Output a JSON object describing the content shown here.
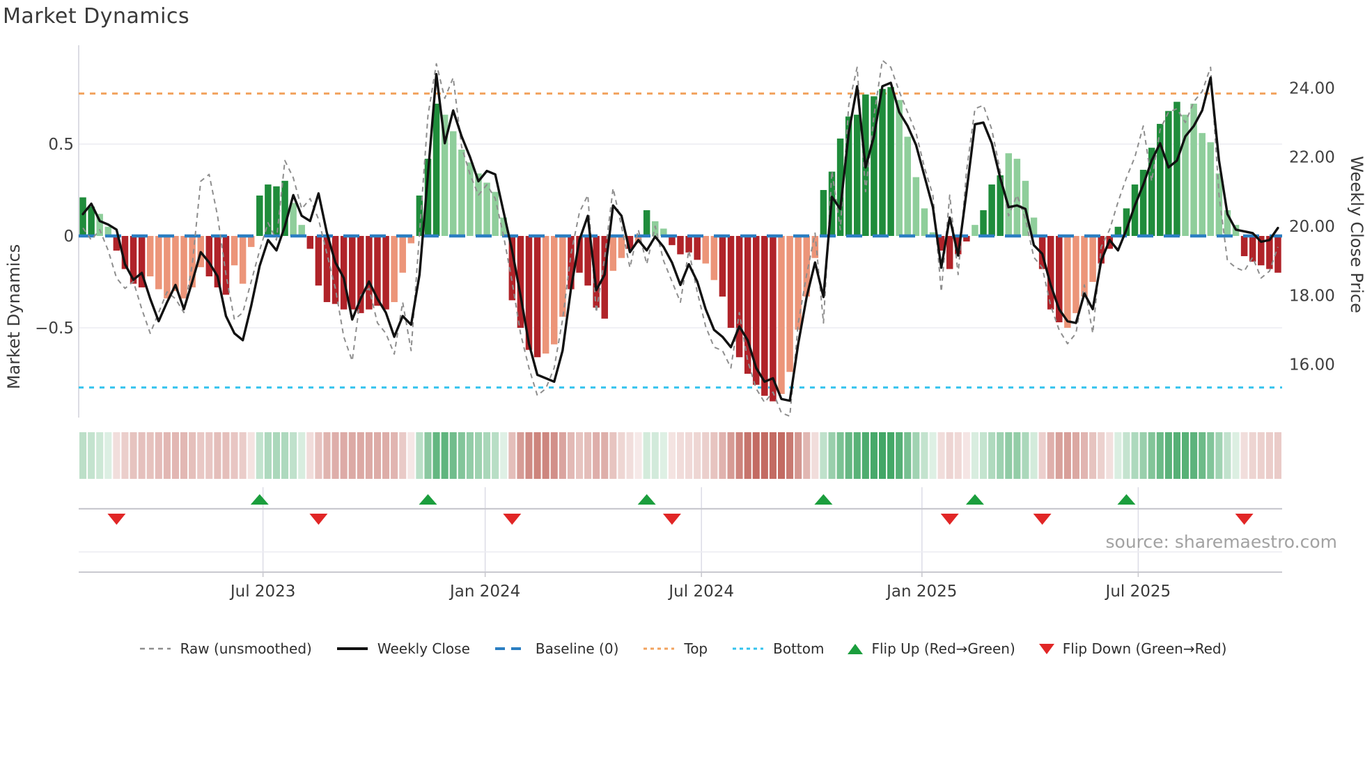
{
  "title": "Market Dynamics",
  "source": "source: sharemaestro.com",
  "legend": {
    "raw": "Raw (unsmoothed)",
    "close": "Weekly Close",
    "baseline": "Baseline (0)",
    "top": "Top",
    "bottom": "Bottom",
    "flip_up": "Flip Up (Red→Green)",
    "flip_down": "Flip Down (Green→Red)"
  },
  "colors": {
    "bar_dark_green": "#1f8c3b",
    "bar_light_green": "#8fce9b",
    "bar_dark_red": "#b02329",
    "bar_salmon": "#ec9579",
    "close_line": "#111111",
    "raw_line": "#8e8e8e",
    "baseline": "#2b7ec2",
    "top_line": "#f2a35e",
    "bottom_line": "#33c3ee",
    "flip_up": "#1b9e3d",
    "flip_down": "#e12626",
    "grid": "#ececf2",
    "spine": "#d4d4dc",
    "axis_line": "#c9c9cf",
    "text": "#3a3a3a",
    "tick_text": "#404040",
    "heat_green_max": "#3aa35f",
    "heat_red_max": "#c0655c"
  },
  "chart_data": {
    "type": "combo",
    "subtype": "oscillator-bars + dual-axis lines + heatmap strip + flip markers",
    "title": "Market Dynamics",
    "left_axis": {
      "label": "Market Dynamics",
      "ticks": [
        {
          "v": 0.5,
          "label": "0.5"
        },
        {
          "v": 0.0,
          "label": "0"
        },
        {
          "v": -0.5,
          "label": "−0.5"
        }
      ],
      "ylim": [
        -0.99,
        1.04
      ],
      "baseline": 0.0,
      "top_band": 0.775,
      "bottom_band": -0.825
    },
    "right_axis": {
      "label": "Weekly Close Price",
      "ticks": [
        {
          "v": 24,
          "label": "24.00"
        },
        {
          "v": 22,
          "label": "22.00"
        },
        {
          "v": 20,
          "label": "20.00"
        },
        {
          "v": 18,
          "label": "18.00"
        },
        {
          "v": 16,
          "label": "16.00"
        }
      ],
      "ylim": [
        14.46,
        25.24
      ]
    },
    "x_axis": {
      "ticks": [
        {
          "week": 21.4,
          "label": "Jul 2023"
        },
        {
          "week": 47.8,
          "label": "Jan 2024"
        },
        {
          "week": 73.5,
          "label": "Jul 2024"
        },
        {
          "week": 99.7,
          "label": "Jan 2025"
        },
        {
          "week": 125.4,
          "label": "Jul 2025"
        }
      ]
    },
    "oscillator": [
      [
        0.21,
        "G"
      ],
      [
        0.16,
        "G"
      ],
      [
        0.12,
        "g"
      ],
      [
        0.05,
        "g"
      ],
      [
        -0.08,
        "R"
      ],
      [
        -0.18,
        "R"
      ],
      [
        -0.26,
        "R"
      ],
      [
        -0.28,
        "R"
      ],
      [
        -0.22,
        "r"
      ],
      [
        -0.29,
        "r"
      ],
      [
        -0.34,
        "r"
      ],
      [
        -0.3,
        "r"
      ],
      [
        -0.34,
        "r"
      ],
      [
        -0.28,
        "r"
      ],
      [
        -0.17,
        "r"
      ],
      [
        -0.22,
        "R"
      ],
      [
        -0.28,
        "R"
      ],
      [
        -0.32,
        "R"
      ],
      [
        -0.16,
        "r"
      ],
      [
        -0.26,
        "r"
      ],
      [
        -0.06,
        "r"
      ],
      [
        0.22,
        "G"
      ],
      [
        0.28,
        "G"
      ],
      [
        0.27,
        "G"
      ],
      [
        0.3,
        "G"
      ],
      [
        0.18,
        "g"
      ],
      [
        0.06,
        "g"
      ],
      [
        -0.07,
        "R"
      ],
      [
        -0.27,
        "R"
      ],
      [
        -0.36,
        "R"
      ],
      [
        -0.37,
        "R"
      ],
      [
        -0.4,
        "R"
      ],
      [
        -0.4,
        "R"
      ],
      [
        -0.42,
        "R"
      ],
      [
        -0.4,
        "R"
      ],
      [
        -0.38,
        "R"
      ],
      [
        -0.4,
        "R"
      ],
      [
        -0.36,
        "r"
      ],
      [
        -0.2,
        "r"
      ],
      [
        -0.04,
        "r"
      ],
      [
        0.22,
        "G"
      ],
      [
        0.42,
        "G"
      ],
      [
        0.72,
        "G"
      ],
      [
        0.66,
        "g"
      ],
      [
        0.57,
        "g"
      ],
      [
        0.47,
        "g"
      ],
      [
        0.4,
        "g"
      ],
      [
        0.34,
        "g"
      ],
      [
        0.29,
        "g"
      ],
      [
        0.24,
        "g"
      ],
      [
        0.1,
        "g"
      ],
      [
        -0.35,
        "R"
      ],
      [
        -0.5,
        "R"
      ],
      [
        -0.62,
        "R"
      ],
      [
        -0.66,
        "R"
      ],
      [
        -0.64,
        "r"
      ],
      [
        -0.59,
        "r"
      ],
      [
        -0.44,
        "r"
      ],
      [
        -0.29,
        "R"
      ],
      [
        -0.2,
        "R"
      ],
      [
        -0.27,
        "R"
      ],
      [
        -0.39,
        "R"
      ],
      [
        -0.45,
        "R"
      ],
      [
        -0.19,
        "r"
      ],
      [
        -0.12,
        "r"
      ],
      [
        -0.07,
        "R"
      ],
      [
        -0.04,
        "r"
      ],
      [
        0.14,
        "G"
      ],
      [
        0.08,
        "g"
      ],
      [
        0.04,
        "g"
      ],
      [
        -0.05,
        "R"
      ],
      [
        -0.1,
        "R"
      ],
      [
        -0.09,
        "R"
      ],
      [
        -0.13,
        "R"
      ],
      [
        -0.15,
        "r"
      ],
      [
        -0.24,
        "r"
      ],
      [
        -0.33,
        "R"
      ],
      [
        -0.5,
        "R"
      ],
      [
        -0.66,
        "R"
      ],
      [
        -0.75,
        "R"
      ],
      [
        -0.81,
        "R"
      ],
      [
        -0.87,
        "R"
      ],
      [
        -0.9,
        "R"
      ],
      [
        -0.86,
        "r"
      ],
      [
        -0.74,
        "r"
      ],
      [
        -0.51,
        "r"
      ],
      [
        -0.33,
        "r"
      ],
      [
        -0.12,
        "r"
      ],
      [
        0.25,
        "G"
      ],
      [
        0.35,
        "G"
      ],
      [
        0.53,
        "G"
      ],
      [
        0.65,
        "G"
      ],
      [
        0.66,
        "G"
      ],
      [
        0.77,
        "G"
      ],
      [
        0.76,
        "G"
      ],
      [
        0.8,
        "G"
      ],
      [
        0.81,
        "G"
      ],
      [
        0.74,
        "g"
      ],
      [
        0.54,
        "g"
      ],
      [
        0.32,
        "g"
      ],
      [
        0.15,
        "g"
      ],
      [
        0.02,
        "g"
      ],
      [
        -0.08,
        "R"
      ],
      [
        -0.18,
        "R"
      ],
      [
        -0.1,
        "R"
      ],
      [
        -0.03,
        "R"
      ],
      [
        0.06,
        "g"
      ],
      [
        0.14,
        "G"
      ],
      [
        0.28,
        "G"
      ],
      [
        0.33,
        "G"
      ],
      [
        0.45,
        "g"
      ],
      [
        0.42,
        "g"
      ],
      [
        0.3,
        "g"
      ],
      [
        0.1,
        "g"
      ],
      [
        -0.18,
        "R"
      ],
      [
        -0.4,
        "R"
      ],
      [
        -0.47,
        "R"
      ],
      [
        -0.5,
        "r"
      ],
      [
        -0.42,
        "r"
      ],
      [
        -0.33,
        "r"
      ],
      [
        -0.25,
        "r"
      ],
      [
        -0.15,
        "R"
      ],
      [
        -0.07,
        "R"
      ],
      [
        0.05,
        "G"
      ],
      [
        0.15,
        "G"
      ],
      [
        0.28,
        "G"
      ],
      [
        0.36,
        "G"
      ],
      [
        0.48,
        "G"
      ],
      [
        0.61,
        "G"
      ],
      [
        0.68,
        "G"
      ],
      [
        0.73,
        "G"
      ],
      [
        0.66,
        "g"
      ],
      [
        0.72,
        "g"
      ],
      [
        0.56,
        "g"
      ],
      [
        0.51,
        "g"
      ],
      [
        0.34,
        "g"
      ],
      [
        0.14,
        "g"
      ],
      [
        0.06,
        "g"
      ],
      [
        -0.11,
        "R"
      ],
      [
        -0.14,
        "R"
      ],
      [
        -0.16,
        "R"
      ],
      [
        -0.18,
        "R"
      ],
      [
        -0.2,
        "R"
      ]
    ],
    "close": [
      20.35,
      20.65,
      20.15,
      20.05,
      19.9,
      18.9,
      18.45,
      18.65,
      17.9,
      17.25,
      17.8,
      18.3,
      17.6,
      18.4,
      19.25,
      18.95,
      18.55,
      17.4,
      16.9,
      16.7,
      17.7,
      18.85,
      19.6,
      19.3,
      20.0,
      20.9,
      20.3,
      20.15,
      20.95,
      19.8,
      18.95,
      18.5,
      17.3,
      17.9,
      18.4,
      17.9,
      17.5,
      16.8,
      17.4,
      17.15,
      18.6,
      21.5,
      24.4,
      22.4,
      23.35,
      22.6,
      22.0,
      21.3,
      21.6,
      21.5,
      20.4,
      19.3,
      18.0,
      16.6,
      15.7,
      15.6,
      15.5,
      16.4,
      18.2,
      19.6,
      20.3,
      18.15,
      18.6,
      20.6,
      20.3,
      19.25,
      19.6,
      19.3,
      19.7,
      19.4,
      18.95,
      18.3,
      18.9,
      18.4,
      17.6,
      17.0,
      16.8,
      16.5,
      17.1,
      16.7,
      15.9,
      15.5,
      15.6,
      15.0,
      14.95,
      16.6,
      17.95,
      18.95,
      17.95,
      20.85,
      20.5,
      22.7,
      24.05,
      21.7,
      22.6,
      24.05,
      24.15,
      23.3,
      22.9,
      22.35,
      21.45,
      20.55,
      18.8,
      20.25,
      19.15,
      21.0,
      22.95,
      23.0,
      22.4,
      21.4,
      20.55,
      20.6,
      20.5,
      19.45,
      19.2,
      18.3,
      17.6,
      17.25,
      17.2,
      18.05,
      17.6,
      19.0,
      19.6,
      19.3,
      19.9,
      20.6,
      21.2,
      21.9,
      22.4,
      21.7,
      21.9,
      22.6,
      22.9,
      23.35,
      24.3,
      21.9,
      20.35,
      19.9,
      19.85,
      19.8,
      19.55,
      19.6,
      19.95
    ],
    "raw": [
      19.95,
      19.6,
      19.9,
      19.3,
      18.5,
      18.2,
      18.4,
      17.6,
      16.9,
      17.5,
      18.1,
      17.9,
      17.5,
      18.9,
      21.3,
      21.5,
      20.3,
      18.6,
      17.3,
      17.5,
      18.4,
      19.3,
      20.1,
      19.6,
      21.9,
      21.4,
      20.5,
      20.8,
      20.2,
      19.2,
      18.2,
      16.8,
      16.1,
      18.0,
      18.2,
      17.2,
      16.9,
      16.3,
      17.8,
      16.4,
      19.8,
      23.2,
      24.7,
      23.7,
      24.3,
      22.3,
      21.5,
      20.9,
      21.2,
      20.8,
      19.7,
      18.4,
      16.9,
      15.9,
      15.1,
      15.3,
      15.9,
      17.3,
      19.2,
      20.4,
      20.9,
      17.5,
      19.1,
      21.1,
      20.0,
      18.8,
      19.9,
      18.9,
      20.0,
      19.0,
      18.4,
      17.8,
      19.3,
      18.1,
      17.1,
      16.5,
      16.4,
      15.9,
      17.5,
      16.1,
      15.3,
      14.9,
      15.2,
      14.6,
      14.5,
      17.2,
      18.6,
      19.8,
      17.2,
      21.6,
      19.9,
      23.5,
      24.6,
      21.0,
      23.2,
      24.8,
      24.6,
      23.9,
      23.3,
      22.7,
      21.7,
      20.9,
      18.1,
      20.9,
      18.6,
      21.6,
      23.4,
      23.5,
      22.8,
      21.6,
      20.3,
      20.9,
      20.2,
      19.1,
      18.8,
      17.7,
      17.0,
      16.6,
      16.9,
      18.3,
      16.9,
      19.4,
      19.9,
      20.7,
      21.4,
      22.0,
      22.9,
      21.3,
      22.8,
      23.3,
      23.4,
      23.0,
      23.6,
      23.9,
      24.6,
      20.9,
      19.0,
      18.8,
      18.7,
      19.1,
      18.5,
      18.7,
      19.4
    ],
    "flip_up_weeks": [
      21,
      41,
      67,
      88,
      106,
      124
    ],
    "flip_down_weeks": [
      4,
      28,
      51,
      70,
      103,
      114,
      138
    ],
    "grid": "on",
    "legend_position": "bottom"
  }
}
